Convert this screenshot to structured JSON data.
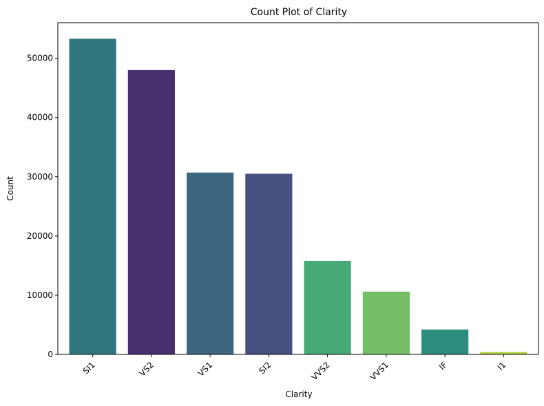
{
  "chart_data": {
    "type": "bar",
    "title": "Count Plot of Clarity",
    "xlabel": "Clarity",
    "ylabel": "Count",
    "categories": [
      "SI1",
      "VS2",
      "VS1",
      "SI2",
      "VVS2",
      "VVS1",
      "IF",
      "I1"
    ],
    "values": [
      53300,
      48000,
      30700,
      30500,
      15800,
      10600,
      4200,
      400
    ],
    "colors": [
      "#31777f",
      "#482f6d",
      "#3c657f",
      "#46517f",
      "#46a976",
      "#74bf66",
      "#2c8d7e",
      "#afd03d"
    ],
    "ylim": [
      0,
      56000
    ],
    "yticks": [
      0,
      10000,
      20000,
      30000,
      40000,
      50000
    ],
    "xtick_rotation": 45,
    "grid": false
  }
}
